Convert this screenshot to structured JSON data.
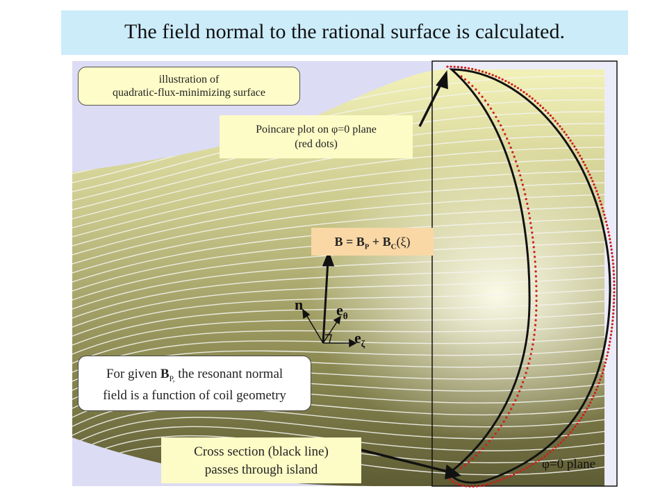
{
  "title": "The field normal to the rational surface is calculated.",
  "labels": {
    "qfms_line1": "illustration of",
    "qfms_line2": "quadratic-flux-minimizing surface",
    "poincare_line1": "Poincare plot on φ=0 plane",
    "poincare_line2": "(red dots)",
    "b_eq_main": "B = B",
    "b_eq_sub1": "P",
    "b_eq_mid": " + B",
    "b_eq_sub2": "C",
    "b_eq_tail": "(ξ)",
    "resonant_pre": "For given ",
    "resonant_b": "B",
    "resonant_sub": "P,",
    "resonant_rest": " the resonant normal",
    "resonant_line2": "field is a function of coil geometry",
    "cross_line1": "Cross section (black line)",
    "cross_line2": "passes through island",
    "plane": "φ=0 plane"
  },
  "vectors": {
    "n": "n",
    "e_theta_base": "e",
    "e_theta_sub": "θ",
    "e_zeta_base": "e",
    "e_zeta_sub": "ζ"
  },
  "colors": {
    "title_bg": "#ccecfa",
    "surface_bg": "#dcdcf4",
    "surface": "#c8c68a",
    "poincare_dots": "#cc1f1f",
    "cross_section": "#111111"
  }
}
